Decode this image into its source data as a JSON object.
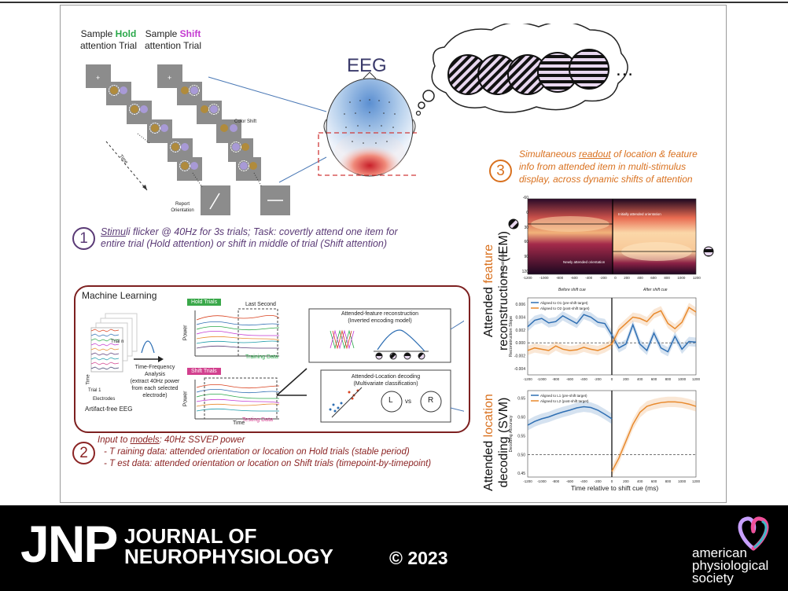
{
  "trial_panel": {
    "hold_prefix": "Sample ",
    "hold_word": "Hold",
    "hold_suffix": "attention Trial",
    "shift_prefix": "Sample ",
    "shift_word": "Shift",
    "shift_suffix": "attention Trial",
    "color_shift": "Color Shift",
    "time_label": "Time",
    "report_label": "Report Orientation",
    "hold_color": "#2aa84a",
    "shift_color": "#c43ad1"
  },
  "eeg": {
    "title": "EEG"
  },
  "step1": {
    "number": "1",
    "line1_a": "Stimu",
    "line1_b": "li flicker @ 40Hz for 3s trials; Task: covertly attend one item for",
    "line2": "entire trial (Hold attention) or shift in middle of trial (Shift attention)",
    "color": "#5a3a76"
  },
  "step2": {
    "number": "2",
    "line1_a": "Input to ",
    "line1_b": "models",
    "line1_c": ": 40Hz SSVEP power",
    "line2": "- T  raining data: attended orientation or location on Hold trials (stable period)",
    "line3": "- T  est data: attended orientation or location on Shift trials (timepoint-by-timepoint)",
    "color": "#8b2424"
  },
  "step3": {
    "number": "3",
    "line1_a": "Simultaneous ",
    "line1_b": "readout",
    "line1_c": " of location & feature",
    "line2": "info from attended item in multi-stimulus",
    "line3": "display, across dynamic shifts of attention",
    "color": "#d9711f"
  },
  "ml_panel": {
    "title": "Machine Learning",
    "trial_n": "Trial n",
    "trial_1": "Trial 1",
    "time_axis": "Time",
    "electrodes": "Electrodes",
    "artifact_free": "Artifact-free EEG",
    "tf_title": "Time-Frequency Analysis",
    "tf_desc": "(extract 40Hz power from each selected electrode)",
    "hold_trials": "Hold Trials",
    "shift_trials": "Shift Trials",
    "last_second": "Last Second",
    "training_data": "Training Data",
    "testing_data": "Testing Data",
    "power": "Power",
    "time": "Time",
    "feat_title": "Attended-feature reconstruction",
    "feat_sub": "(Inverted encoding model)",
    "loc_title": "Attended-Location decoding",
    "loc_sub": "(Multivariate classification)",
    "L": "L",
    "vs": "vs",
    "R": "R",
    "hold_color": "#3aa84a",
    "shift_color": "#d2408e"
  },
  "right_labels": {
    "feature_a": "Attended ",
    "feature_b": "feature",
    "feature_c": "reconstructions (IEM)",
    "location_a": "Attended ",
    "location_b": "location",
    "location_c": "decoding (SVM)"
  },
  "heatmap": {
    "y_label": "Reconstruction",
    "y_ticks": [
      "-60",
      "0",
      "30",
      "60",
      "90",
      "120"
    ],
    "x_ticks": [
      "-1200",
      "-1000",
      "-800",
      "-600",
      "-400",
      "-200",
      "0",
      "200",
      "400",
      "600",
      "800",
      "1000",
      "1200"
    ],
    "before": "Before shift cue",
    "after": "After shift cue",
    "newly": "Newly attended orientation",
    "initially": "Initially attended orientation"
  },
  "chart_data": [
    {
      "type": "line",
      "ylabel": "Reconstruction Slope",
      "x": [
        -1200,
        -1100,
        -1000,
        -900,
        -800,
        -700,
        -600,
        -500,
        -400,
        -300,
        -200,
        -100,
        0,
        100,
        200,
        300,
        400,
        500,
        600,
        700,
        800,
        900,
        1000,
        1100,
        1200
      ],
      "ylim": [
        -0.005,
        0.007
      ],
      "yticks": [
        "0.006",
        "0.004",
        "0.002",
        "0.000",
        "-0.002",
        "-0.004"
      ],
      "xticks": [
        "-1200",
        "-1000",
        "-800",
        "-600",
        "-400",
        "-200",
        "0",
        "200",
        "400",
        "600",
        "800",
        "1000",
        "1200"
      ],
      "series": [
        {
          "name": "Aligned to O1 (pre-shift target)",
          "color": "#2f6fb3",
          "values": [
            0.0025,
            0.0035,
            0.0038,
            0.0031,
            0.0033,
            0.0042,
            0.0036,
            0.003,
            0.0044,
            0.004,
            0.0032,
            0.003,
            0.0012,
            -0.0008,
            -0.0002,
            0.0028,
            -0.0002,
            -0.0012,
            0.0015,
            -0.0008,
            -0.0014,
            0.001,
            -0.001,
            0.0002,
            0.0001
          ]
        },
        {
          "name": "Aligned to O2 (post-shift target)",
          "color": "#e8892c",
          "values": [
            -0.0012,
            -0.0008,
            -0.001,
            -0.0012,
            -0.0005,
            -0.001,
            -0.0012,
            -0.0011,
            -0.0007,
            -0.001,
            -0.0012,
            -0.0008,
            -0.0002,
            0.002,
            0.003,
            0.004,
            0.0038,
            0.0033,
            0.0045,
            0.005,
            0.003,
            0.0022,
            0.0032,
            0.0055,
            0.0048
          ]
        }
      ]
    },
    {
      "type": "line",
      "ylabel": "Decoding Accuracy",
      "xlabel": "Time relative to shift cue (ms)",
      "x": [
        -1200,
        -1100,
        -1000,
        -900,
        -800,
        -700,
        -600,
        -500,
        -400,
        -300,
        -200,
        -100,
        0,
        100,
        200,
        300,
        400,
        500,
        600,
        700,
        800,
        900,
        1000,
        1100,
        1200
      ],
      "ylim": [
        0.44,
        0.67
      ],
      "yticks": [
        "0.65",
        "0.60",
        "0.55",
        "0.50",
        "0.45"
      ],
      "xticks": [
        "-1200",
        "-1000",
        "-800",
        "-600",
        "-400",
        "-200",
        "0",
        "200",
        "400",
        "600",
        "800",
        "1000",
        "1200"
      ],
      "series": [
        {
          "name": "Aligned to L1 (pre-shift target)",
          "color": "#2f6fb3",
          "values": [
            0.578,
            0.588,
            0.595,
            0.6,
            0.607,
            0.613,
            0.618,
            0.624,
            0.627,
            0.625,
            0.618,
            0.607,
            0.595,
            null,
            null,
            null,
            null,
            null,
            null,
            null,
            null,
            null,
            null,
            null,
            null
          ]
        },
        {
          "name": "Aligned to L2 (post-shift target)",
          "color": "#e8892c",
          "values": [
            null,
            null,
            null,
            null,
            null,
            null,
            null,
            null,
            null,
            null,
            null,
            null,
            0.455,
            0.49,
            0.535,
            0.58,
            0.612,
            0.628,
            0.634,
            0.638,
            0.64,
            0.64,
            0.638,
            0.634,
            0.628
          ]
        }
      ]
    }
  ],
  "footer": {
    "jnp": "JNP",
    "journal_line1": "JOURNAL OF",
    "journal_line2": "NEUROPHYSIOLOGY",
    "copyright": "© 2023",
    "society_line1": "american",
    "society_line2": "physiological",
    "society_line3": "society"
  }
}
